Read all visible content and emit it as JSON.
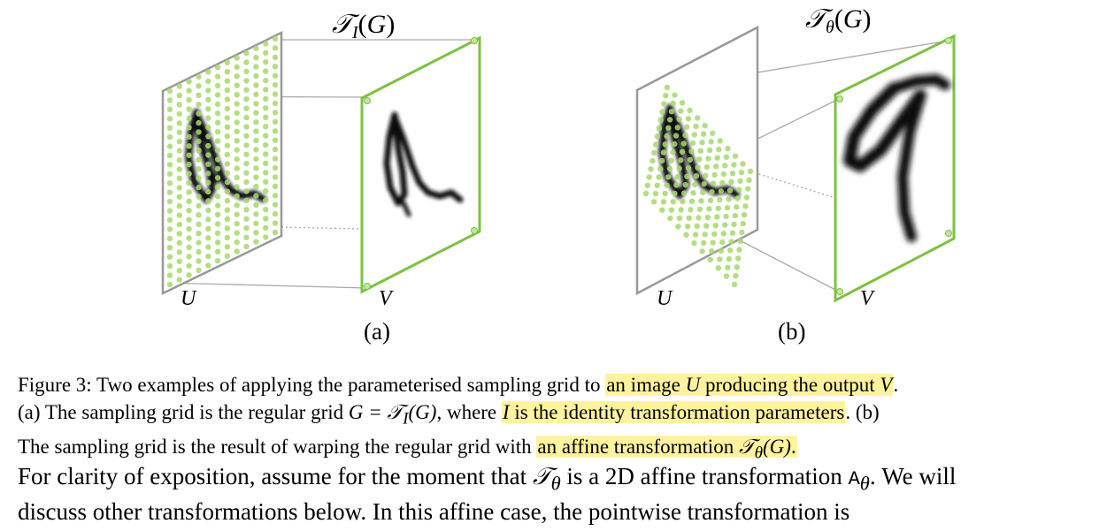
{
  "figure": {
    "panel_a": {
      "transform_label": "𝒯_I(G)",
      "input_label": "U",
      "output_label": "V",
      "sublabel": "(a)"
    },
    "panel_b": {
      "transform_label": "𝒯_θ(G)",
      "input_label": "U",
      "output_label": "V",
      "sublabel": "(b)"
    },
    "colors": {
      "grid_points": "#a8d86e",
      "output_frame": "#7cc242",
      "input_frame": "#999999",
      "connector": "#aaaaaa",
      "highlight": "#fff3a0"
    }
  },
  "caption": {
    "fig_label": "Figure 3:",
    "line1_a": "Two examples of applying the parameterised sampling grid to",
    "hl1_a": "an image",
    "hl1_U": "U",
    "hl1_b": "producing the output",
    "hl1_V": "V",
    "line1_end": ".",
    "line2_a": "(a) The sampling grid is the regular grid",
    "line2_eq": "G = 𝒯",
    "line2_sub": "I",
    "line2_eq2": "(G)",
    "line2_b": ", where",
    "hl2_I": "I",
    "hl2_rest": "is the identity transformation parameters",
    "line2_c": ". (b)",
    "line3_a": "The sampling grid is the result of warping the regular grid with",
    "hl3_a": "an affine transformation",
    "hl3_T": "𝒯",
    "hl3_sub": "θ",
    "hl3_G": "(G)",
    "line3_end": "."
  },
  "body": {
    "line1_a": "For clarity of exposition, assume for the moment that",
    "line1_T": "𝒯",
    "line1_sub": "θ",
    "line1_b": "is a 2D affine transformation",
    "line1_A": "A",
    "line1_Asub": "θ",
    "line1_c": ". We will",
    "line2": "discuss other transformations below. In this affine case, the pointwise transformation is"
  }
}
